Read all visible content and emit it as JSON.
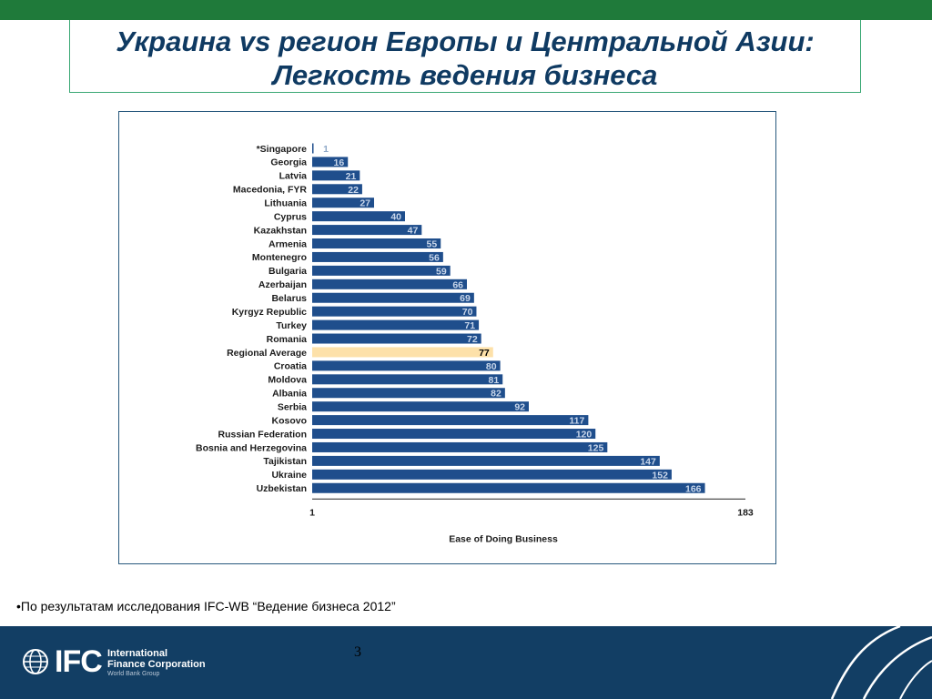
{
  "slide": {
    "title_line1": "Украина vs регион Европы и Центральной Азии:",
    "title_line2": "Легкость ведения бизнеса",
    "footnote": "•По результатам исследования IFC-WB “Ведение бизнеса 2012”",
    "page_number": "3"
  },
  "logo": {
    "text": "IFC",
    "name_line1": "International",
    "name_line2": "Finance Corporation",
    "sub": "World Bank Group"
  },
  "colors": {
    "bar": "#1f4e8c",
    "highlight_bar": "#fde1a9",
    "bar_label": "#c8d6ea",
    "highlight_label": "#000000",
    "top_bar": "#1f7a3a",
    "footer": "#123e64",
    "title": "#0f3a62"
  },
  "chart_data": {
    "type": "bar",
    "orientation": "horizontal",
    "categories": [
      "*Singapore",
      "Georgia",
      "Latvia",
      "Macedonia, FYR",
      "Lithuania",
      "Cyprus",
      "Kazakhstan",
      "Armenia",
      "Montenegro",
      "Bulgaria",
      "Azerbaijan",
      "Belarus",
      "Kyrgyz Republic",
      "Turkey",
      "Romania",
      "Regional Average",
      "Croatia",
      "Moldova",
      "Albania",
      "Serbia",
      "Kosovo",
      "Russian Federation",
      "Bosnia and Herzegovina",
      "Tajikistan",
      "Ukraine",
      "Uzbekistan"
    ],
    "values": [
      1,
      16,
      21,
      22,
      27,
      40,
      47,
      55,
      56,
      59,
      66,
      69,
      70,
      71,
      72,
      77,
      80,
      81,
      82,
      92,
      117,
      120,
      125,
      147,
      152,
      166
    ],
    "highlight": "Regional Average",
    "xlabel": "Ease of Doing Business",
    "xlim": [
      1,
      183
    ],
    "xticks": [
      "1",
      "183"
    ],
    "grid": false,
    "legend": "none"
  }
}
